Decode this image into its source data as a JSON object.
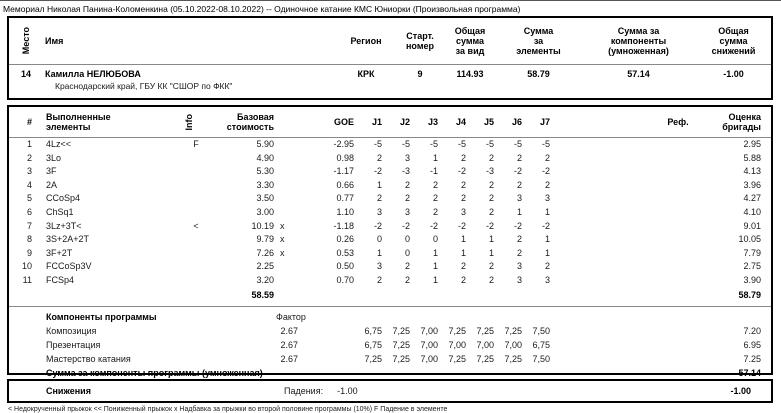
{
  "title": "Мемориал Николая Панина-Коломенкина (05.10.2022-08.10.2022)  --  Одиночное катание КМС Юниорки  (Произвольная программа)",
  "summary": {
    "headers": {
      "place": "Место",
      "name": "Имя",
      "region": "Регион",
      "start": "Старт.\nномер",
      "total": "Общая\nсумма\nза вид",
      "tes": "Сумма\nза\nэлементы",
      "pcs": "Сумма за\nкомпоненты\n(умноженная)",
      "ded": "Общая\nсумма\nснижений"
    },
    "skater": {
      "place": "14",
      "name": "Камилла НЕЛЮБОВА",
      "club": "Краснодарский край, ГБУ КК \"СШОР по ФКК\"",
      "region": "КРК",
      "start": "9",
      "total": "114.93",
      "tes": "58.79",
      "pcs": "57.14",
      "ded": "-1.00"
    }
  },
  "elements": {
    "headers": {
      "num": "#",
      "name": "Выполненные\nэлементы",
      "info": "Info",
      "base": "Базовая\nстоимость",
      "goe": "GOE",
      "judges": [
        "J1",
        "J2",
        "J3",
        "J4",
        "J5",
        "J6",
        "J7"
      ],
      "ref": "Реф.",
      "score": "Оценка\nбригады"
    },
    "rows": [
      {
        "num": "1",
        "name": "4Lz<<",
        "info": "F",
        "base": "5.90",
        "x": "",
        "goe": "-2.95",
        "judges": [
          "-5",
          "-5",
          "-5",
          "-5",
          "-5",
          "-5",
          "-5"
        ],
        "score": "2.95"
      },
      {
        "num": "2",
        "name": "3Lo",
        "info": "",
        "base": "4.90",
        "x": "",
        "goe": "0.98",
        "judges": [
          "2",
          "3",
          "1",
          "2",
          "2",
          "2",
          "2"
        ],
        "score": "5.88"
      },
      {
        "num": "3",
        "name": "3F",
        "info": "",
        "base": "5.30",
        "x": "",
        "goe": "-1.17",
        "judges": [
          "-2",
          "-3",
          "-1",
          "-2",
          "-3",
          "-2",
          "-2"
        ],
        "score": "4.13"
      },
      {
        "num": "4",
        "name": "2A",
        "info": "",
        "base": "3.30",
        "x": "",
        "goe": "0.66",
        "judges": [
          "1",
          "2",
          "2",
          "2",
          "2",
          "2",
          "2"
        ],
        "score": "3.96"
      },
      {
        "num": "5",
        "name": "CCoSp4",
        "info": "",
        "base": "3.50",
        "x": "",
        "goe": "0.77",
        "judges": [
          "2",
          "2",
          "2",
          "2",
          "2",
          "3",
          "3"
        ],
        "score": "4.27"
      },
      {
        "num": "6",
        "name": "ChSq1",
        "info": "",
        "base": "3.00",
        "x": "",
        "goe": "1.10",
        "judges": [
          "3",
          "3",
          "2",
          "3",
          "2",
          "1",
          "1"
        ],
        "score": "4.10"
      },
      {
        "num": "7",
        "name": "3Lz+3T<",
        "info": "<",
        "base": "10.19",
        "x": "x",
        "goe": "-1.18",
        "judges": [
          "-2",
          "-2",
          "-2",
          "-2",
          "-2",
          "-2",
          "-2"
        ],
        "score": "9.01"
      },
      {
        "num": "8",
        "name": "3S+2A+2T",
        "info": "",
        "base": "9.79",
        "x": "x",
        "goe": "0.26",
        "judges": [
          "0",
          "0",
          "0",
          "1",
          "1",
          "2",
          "1"
        ],
        "score": "10.05"
      },
      {
        "num": "9",
        "name": "3F+2T",
        "info": "",
        "base": "7.26",
        "x": "x",
        "goe": "0.53",
        "judges": [
          "1",
          "0",
          "1",
          "1",
          "1",
          "2",
          "1"
        ],
        "score": "7.79"
      },
      {
        "num": "10",
        "name": "FCCoSp3V",
        "info": "",
        "base": "2.25",
        "x": "",
        "goe": "0.50",
        "judges": [
          "3",
          "2",
          "1",
          "2",
          "2",
          "3",
          "2"
        ],
        "score": "2.75"
      },
      {
        "num": "11",
        "name": "FCSp4",
        "info": "",
        "base": "3.20",
        "x": "",
        "goe": "0.70",
        "judges": [
          "2",
          "2",
          "1",
          "2",
          "2",
          "3",
          "3"
        ],
        "score": "3.90"
      }
    ],
    "total_base": "58.59",
    "total_score": "58.79"
  },
  "components": {
    "title": "Компоненты программы",
    "factor_label": "Фактор",
    "rows": [
      {
        "name": "Композиция",
        "factor": "2.67",
        "judges": [
          "6,75",
          "7,25",
          "7,00",
          "7,25",
          "7,25",
          "7,25",
          "7,50"
        ],
        "score": "7.20"
      },
      {
        "name": "Презентация",
        "factor": "2.67",
        "judges": [
          "6,75",
          "7,25",
          "7,00",
          "7,00",
          "7,00",
          "7,00",
          "6,75"
        ],
        "score": "6.95"
      },
      {
        "name": "Мастерство катания",
        "factor": "2.67",
        "judges": [
          "7,25",
          "7,25",
          "7,00",
          "7,25",
          "7,25",
          "7,25",
          "7,50"
        ],
        "score": "7.25"
      }
    ],
    "total_label": "Сумма за компоненты программы (умноженная)",
    "total": "57.14"
  },
  "deductions": {
    "label": "Снижения",
    "detail_label": "Падения:",
    "detail_value": "-1.00",
    "total": "-1.00"
  },
  "footnote": "< Недокрученный прыжок   << Пониженный прыжок   x Надбавка за прыжки во второй половине программы (10%)   F Падение в элементе"
}
